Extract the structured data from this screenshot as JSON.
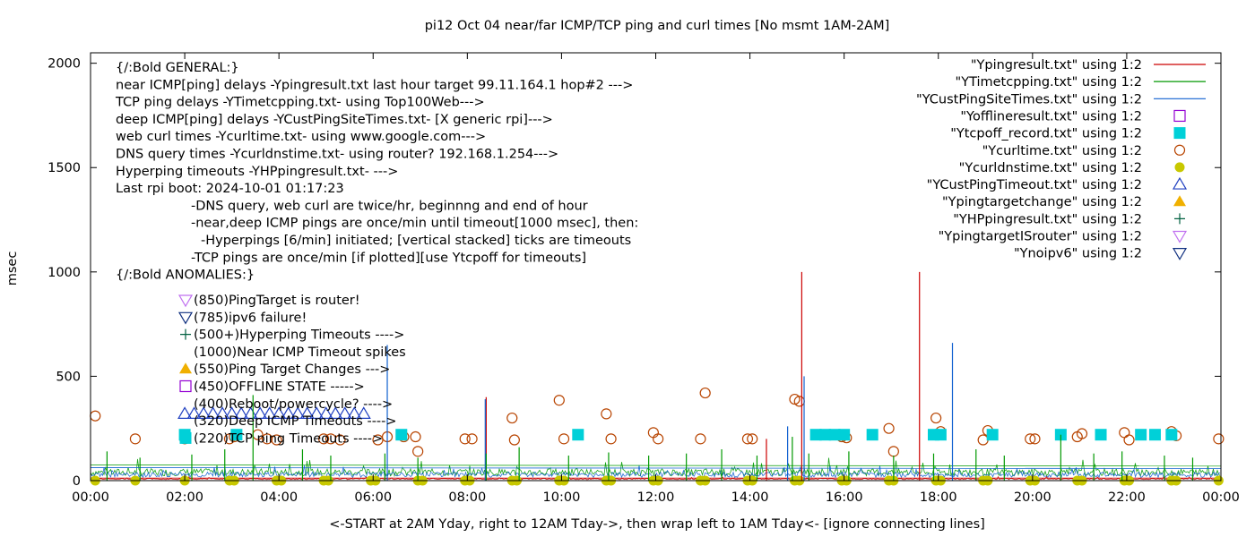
{
  "chart_data": {
    "type": "line",
    "title": "pi12 Oct 04  near/far ICMP/TCP ping and curl times [No msmt 1AM-2AM]",
    "xlabel": "<-START at 2AM Yday, right to 12AM Tday->, then wrap left to 1AM Tday<- [ignore connecting lines]",
    "ylabel": "msec",
    "xlim": [
      0,
      24
    ],
    "ylim": [
      0,
      2050
    ],
    "x_ticks": [
      "00:00",
      "02:00",
      "04:00",
      "06:00",
      "08:00",
      "10:00",
      "12:00",
      "14:00",
      "16:00",
      "18:00",
      "20:00",
      "22:00",
      "00:00"
    ],
    "y_ticks": [
      "0",
      "500",
      "1000",
      "1500",
      "2000"
    ],
    "legend_position": "top-right",
    "legend": [
      {
        "label": "\"Ypingresult.txt\" using 1:2",
        "kind": "line",
        "color": "#cc0000"
      },
      {
        "label": "\"YTimetcpping.txt\" using 1:2",
        "kind": "line",
        "color": "#009900"
      },
      {
        "label": "\"YCustPingSiteTimes.txt\" using 1:2",
        "kind": "line",
        "color": "#1060d0"
      },
      {
        "label": "\"Yofflineresult.txt\" using 1:2",
        "kind": "open-square",
        "color": "#9400d3"
      },
      {
        "label": "\"Ytcpoff_record.txt\" using 1:2",
        "kind": "filled-square",
        "color": "#00d0d8"
      },
      {
        "label": "\"Ycurltime.txt\" using 1:2",
        "kind": "open-circle",
        "color": "#b84400"
      },
      {
        "label": "\"Ycurldnstime.txt\" using 1:2",
        "kind": "filled-circle",
        "color": "#c8c800"
      },
      {
        "label": "\"YCustPingTimeout.txt\" using 1:2",
        "kind": "open-triangle",
        "color": "#2040c0"
      },
      {
        "label": "\"Ypingtargetchange\" using 1:2",
        "kind": "filled-triangle",
        "color": "#f0b000"
      },
      {
        "label": "\"YHPpingresult.txt\" using 1:2",
        "kind": "plus",
        "color": "#006040"
      },
      {
        "label": "\"YpingtargetISrouter\" using 1:2",
        "kind": "open-triangle-down",
        "color": "#c070f0"
      },
      {
        "label": "\"Ynoipv6\" using 1:2",
        "kind": "open-triangle-down",
        "color": "#103080"
      }
    ],
    "notes": [
      "{/:Bold GENERAL:}",
      "near ICMP[ping] delays -Ypingresult.txt last hour target 99.11.164.1 hop#2 --->",
      "TCP ping delays -YTimetcpping.txt- using Top100Web--->",
      "deep ICMP[ping] delays -YCustPingSiteTimes.txt- [X generic rpi]--->",
      "web curl times -Ycurltime.txt- using www.google.com--->",
      "DNS query times -Ycurldnstime.txt- using router? 192.168.1.254--->",
      "Hyperping timeouts -YHPpingresult.txt- --->",
      "Last rpi boot: 2024-10-01 01:17:23",
      "-DNS query, web curl are twice/hr, beginnng and end of hour",
      "-near,deep ICMP pings are once/min until timeout[1000 msec], then:",
      "-Hyperpings [6/min] initiated; [vertical stacked] ticks are timeouts",
      "-TCP pings are once/min [if plotted][use Ytcpoff for timeouts]",
      "{/:Bold ANOMALIES:}"
    ],
    "anomalies": [
      {
        "label": "(850)PingTarget is router!",
        "kind": "open-triangle-down",
        "color": "#c070f0"
      },
      {
        "label": "(785)ipv6 failure!",
        "kind": "open-triangle-down",
        "color": "#103080"
      },
      {
        "label": "(500+)Hyperping Timeouts ---->",
        "kind": "plus",
        "color": "#006040"
      },
      {
        "label": "(1000)Near ICMP Timeout spikes",
        "kind": "none",
        "color": ""
      },
      {
        "label": "(550)Ping Target Changes --->",
        "kind": "filled-triangle",
        "color": "#f0b000"
      },
      {
        "label": "(450)OFFLINE STATE ----->",
        "kind": "open-square",
        "color": "#9400d3"
      },
      {
        "label": "(400)Reboot/powercycle? ---->",
        "kind": "none",
        "color": ""
      },
      {
        "label": "(320)Deep ICMP Timeouts ---->",
        "kind": "none",
        "color": ""
      },
      {
        "label": "(220)TCP ping Timeouts ---->",
        "kind": "filled-square",
        "color": "#00d0d8"
      }
    ],
    "series": [
      {
        "name": "\"Ycurltime.txt\" using 1:2",
        "marker": "open-circle",
        "x": [
          0.1,
          0.95,
          2.0,
          2.95,
          3.05,
          3.55,
          3.75,
          3.95,
          4.95,
          5.1,
          5.3,
          6.1,
          6.3,
          6.65,
          6.9,
          6.95,
          7.95,
          8.1,
          8.95,
          9.0,
          9.95,
          10.05,
          10.95,
          11.05,
          11.95,
          12.05,
          12.95,
          13.05,
          13.95,
          14.05,
          14.95,
          15.05,
          15.95,
          16.05,
          16.95,
          17.05,
          17.95,
          18.05,
          18.95,
          19.05,
          19.95,
          20.05,
          20.95,
          21.05,
          21.95,
          22.05,
          22.95,
          23.05,
          23.95
        ],
        "y": [
          310,
          200,
          200,
          200,
          210,
          220,
          200,
          195,
          200,
          200,
          195,
          195,
          210,
          210,
          210,
          140,
          200,
          200,
          300,
          195,
          385,
          200,
          320,
          200,
          230,
          200,
          200,
          420,
          200,
          200,
          390,
          380,
          210,
          205,
          250,
          140,
          300,
          235,
          195,
          240,
          200,
          200,
          210,
          225,
          230,
          195,
          235,
          215,
          200
        ]
      },
      {
        "name": "\"Ytcpoff_record.txt\" using 1:2",
        "marker": "filled-square",
        "x": [
          2.0,
          3.1,
          6.6,
          10.35,
          15.4,
          15.6,
          15.8,
          16.0,
          16.6,
          17.9,
          18.05,
          19.15,
          20.6,
          21.45,
          22.3,
          22.6,
          22.95
        ],
        "y": [
          220,
          220,
          220,
          220,
          220,
          220,
          220,
          220,
          220,
          220,
          220,
          220,
          220,
          220,
          220,
          220,
          220
        ]
      },
      {
        "name": "\"Ycurldnstime.txt\" using 1:2",
        "marker": "filled-circle",
        "x": [
          0.1,
          0.95,
          2.0,
          2.95,
          3.05,
          3.95,
          4.05,
          4.95,
          5.05,
          5.95,
          6.05,
          6.95,
          7.05,
          7.95,
          8.05,
          8.95,
          9.05,
          9.95,
          10.05,
          10.95,
          11.05,
          11.95,
          12.05,
          12.95,
          13.05,
          13.95,
          14.05,
          14.95,
          15.05,
          15.95,
          16.05,
          16.95,
          17.05,
          17.95,
          18.05,
          18.95,
          19.05,
          19.95,
          20.05,
          20.95,
          21.05,
          21.95,
          22.05,
          22.95,
          23.05,
          23.95
        ],
        "y": [
          0,
          0,
          0,
          0,
          0,
          0,
          0,
          0,
          0,
          0,
          0,
          0,
          0,
          0,
          0,
          0,
          0,
          0,
          0,
          0,
          0,
          0,
          0,
          0,
          0,
          0,
          0,
          0,
          0,
          0,
          0,
          0,
          0,
          0,
          0,
          0,
          0,
          0,
          0,
          0,
          0,
          0,
          0,
          0,
          0,
          0
        ]
      },
      {
        "name": "\"YCustPingTimeout.txt\" using 1:2",
        "marker": "open-triangle",
        "x": [
          2.0,
          2.2,
          2.4,
          2.6,
          2.8,
          3.0,
          3.2,
          3.4,
          3.6,
          3.8,
          4.0,
          4.2,
          4.4,
          4.6,
          4.8,
          5.0,
          5.2,
          5.4,
          5.6,
          5.8
        ],
        "y": [
          320,
          320,
          320,
          320,
          320,
          320,
          320,
          320,
          320,
          320,
          320,
          320,
          320,
          320,
          320,
          320,
          320,
          320,
          320,
          320
        ]
      },
      {
        "name": "\"Ypingresult.txt\" using 1:2",
        "kind": "spikes",
        "color": "#cc0000",
        "x": [
          8.4,
          14.35,
          15.1,
          17.6
        ],
        "y": [
          400,
          200,
          1000,
          1000
        ]
      },
      {
        "name": "\"YCustPingSiteTimes.txt\" using 1:2",
        "kind": "spikes",
        "color": "#1060d0",
        "x": [
          6.3,
          8.38,
          14.8,
          15.15,
          18.3
        ],
        "y": [
          650,
          390,
          260,
          500,
          660
        ]
      },
      {
        "name": "\"YTimetcpping.txt\" using 1:2",
        "kind": "spikes",
        "color": "#009900",
        "x": [
          0.35,
          1.05,
          2.15,
          2.85,
          3.45,
          4.5,
          5.1,
          6.25,
          6.95,
          8.4,
          9.1,
          10.15,
          11.0,
          11.85,
          12.65,
          13.4,
          14.15,
          14.9,
          15.25,
          16.1,
          17.05,
          17.9,
          18.8,
          19.4,
          20.6,
          21.3,
          21.9,
          22.8,
          23.4
        ],
        "y": [
          140,
          110,
          125,
          150,
          410,
          150,
          120,
          130,
          110,
          130,
          160,
          120,
          135,
          120,
          130,
          150,
          120,
          210,
          130,
          140,
          120,
          130,
          150,
          120,
          220,
          130,
          140,
          120,
          110
        ]
      }
    ]
  }
}
